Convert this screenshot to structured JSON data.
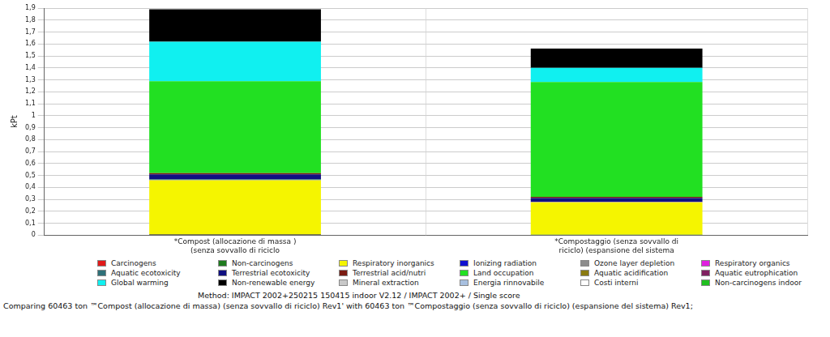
{
  "chart_data": {
    "type": "bar",
    "stacked": true,
    "grid": true,
    "legend": "bottom",
    "y_label": "kPt",
    "annotations": [
      "Method: IMPACT 2002+250215 150415 indoor V2.12 / IMPACT 2002+ / Single score",
      "Comparing 60463 ton ™Compost (allocazione di massa) (senza sovvallo di riciclo) Rev1' with 60463 ton ™Compostaggio (senza sovvallo di riciclo) (espansione del sistema) Rev1;"
    ],
    "categories": [
      "*Compost (allocazione di massa ) (senza sovvallo di riciclo",
      "*Compostaggio (senza sovvallo di riciclo) (espansione del sistema"
    ],
    "ylim": [
      0,
      1.9
    ],
    "yticks": [
      0,
      {
        "value": 0.1,
        "label": "0,1"
      },
      {
        "value": 0.2,
        "label": "0,2"
      },
      {
        "value": 0.3,
        "label": "0,3"
      },
      {
        "value": 0.4,
        "label": "0,4"
      },
      {
        "value": 0.5,
        "label": "0,5"
      },
      {
        "value": 0.6,
        "label": "0,6"
      },
      {
        "value": 0.7,
        "label": "0,7"
      },
      {
        "value": 0.8,
        "label": "0,8"
      },
      {
        "value": 0.9,
        "label": "0,9"
      },
      1,
      {
        "value": 1.1,
        "label": "1,1"
      },
      {
        "value": 1.2,
        "label": "1,2"
      },
      {
        "value": 1.3,
        "label": "1,3"
      },
      {
        "value": 1.4,
        "label": "1,4"
      },
      {
        "value": 1.5,
        "label": "1,5"
      },
      {
        "value": 1.6,
        "label": "1,6"
      },
      {
        "value": 1.7,
        "label": "1,7"
      },
      {
        "value": 1.8,
        "label": "1,8"
      },
      {
        "value": 1.9,
        "label": "1,9"
      }
    ],
    "series": [
      {
        "name": "Carcinogens",
        "color": "#e01a1a",
        "values": [
          0.005,
          0.003
        ]
      },
      {
        "name": "Non-carcinogens",
        "color": "#1e7a1e",
        "values": [
          0.005,
          0.002
        ]
      },
      {
        "name": "Respiratory inorganics",
        "color": "#f5f500",
        "values": [
          0.45,
          0.27
        ]
      },
      {
        "name": "Ionizing radiation",
        "color": "#1010d0",
        "values": [
          0.002,
          0.001
        ]
      },
      {
        "name": "Ozone layer depletion",
        "color": "#8c8c8c",
        "values": [
          0.001,
          0.001
        ]
      },
      {
        "name": "Respiratory organics",
        "color": "#e020e0",
        "values": [
          0.001,
          0.001
        ]
      },
      {
        "name": "Aquatic ecotoxicity",
        "color": "#2e7078",
        "values": [
          0.005,
          0.003
        ]
      },
      {
        "name": "Terrestrial ecotoxicity",
        "color": "#101080",
        "values": [
          0.04,
          0.03
        ]
      },
      {
        "name": "Terrestrial acid/nutri",
        "color": "#7a1a10",
        "values": [
          0.01,
          0.01
        ]
      },
      {
        "name": "Land occupation",
        "color": "#22e022",
        "values": [
          0.77,
          0.96
        ]
      },
      {
        "name": "Aquatic acidification",
        "color": "#8a7a10",
        "values": [
          0,
          0
        ]
      },
      {
        "name": "Aquatic eutrophication",
        "color": "#802060",
        "values": [
          0,
          0
        ]
      },
      {
        "name": "Global warming",
        "color": "#10f0f0",
        "values": [
          0.33,
          0.12
        ]
      },
      {
        "name": "Non-renewable energy",
        "color": "#000000",
        "values": [
          0.27,
          0.16
        ]
      },
      {
        "name": "Mineral extraction",
        "color": "#c8c8c8",
        "values": [
          0.003,
          0.002
        ]
      },
      {
        "name": "Energia rinnovabile",
        "color": "#a8c0e0",
        "values": [
          0,
          0
        ]
      },
      {
        "name": "Costi interni",
        "color": "#ffffff",
        "values": [
          0,
          0
        ]
      },
      {
        "name": "Non-carcinogens indoor",
        "color": "#20c020",
        "values": [
          0,
          0
        ]
      }
    ]
  }
}
